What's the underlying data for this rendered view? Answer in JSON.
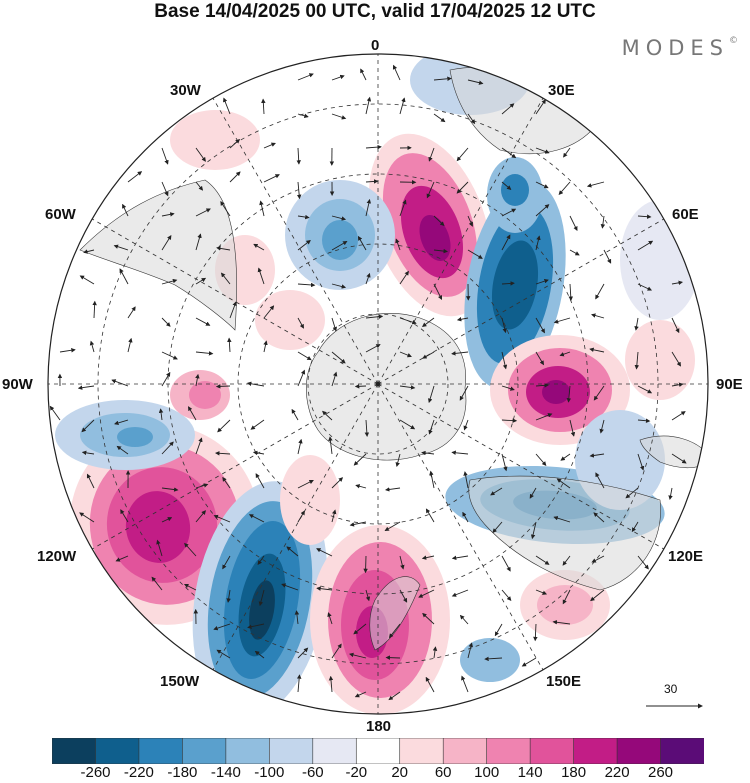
{
  "header": {
    "title": "Base 14/04/2025 00 UTC, valid 17/04/2025 12 UTC",
    "brand": "MODES",
    "brand_mark": "©"
  },
  "map": {
    "projection": "south-polar-stereographic",
    "longitude_labels": [
      "0",
      "30E",
      "60E",
      "90E",
      "120E",
      "150E",
      "180",
      "150W",
      "120W",
      "90W",
      "60W",
      "30W"
    ],
    "reference_vector": {
      "label": "30"
    },
    "anomaly_features": [
      {
        "kind": "positive",
        "color": "#b51d8b"
      },
      {
        "kind": "negative",
        "color": "#2a6fa3"
      }
    ]
  },
  "colorbar": {
    "colors": [
      "#0c3f5e",
      "#0f5f8d",
      "#2c82b8",
      "#5aa0cd",
      "#91bedf",
      "#c3d6ec",
      "#e6e8f3",
      "#ffffff",
      "#fbdbde",
      "#f6b4c7",
      "#ef83b0",
      "#e1539b",
      "#c21d86",
      "#95087a",
      "#5b0c77"
    ],
    "ticks": [
      "-260",
      "-220",
      "-180",
      "-140",
      "-100",
      "-60",
      "-20",
      "20",
      "60",
      "100",
      "140",
      "180",
      "220",
      "260"
    ]
  }
}
